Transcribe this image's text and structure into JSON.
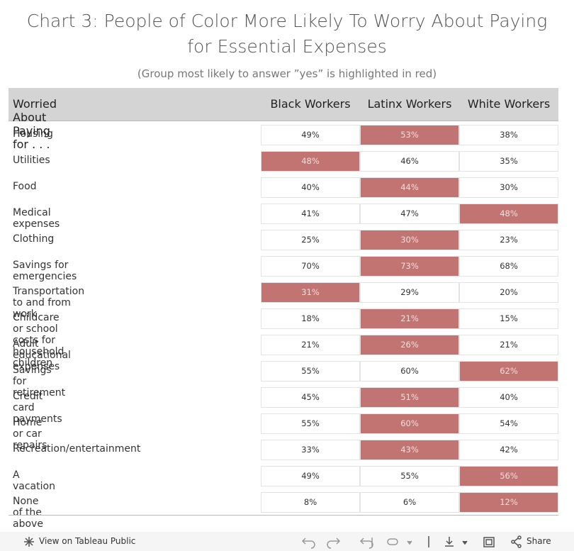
{
  "header": {
    "title": "Chart 3: People of Color More Likely To Worry About Paying for Essential Expenses",
    "subtitle": "(Group most likely to answer ”yes” is highlighted in red)"
  },
  "table": {
    "highlight_color": "#c17471",
    "columns": [
      "Worried About Paying for . . .",
      "Black Workers",
      "Latinx Workers",
      "White Workers"
    ],
    "rows": [
      {
        "label": "Housing",
        "cells": [
          {
            "text": "49%",
            "highlighted": false
          },
          {
            "text": "53%",
            "highlighted": true
          },
          {
            "text": "38%",
            "highlighted": false
          }
        ]
      },
      {
        "label": "Utilities",
        "cells": [
          {
            "text": "48%",
            "highlighted": true
          },
          {
            "text": "46%",
            "highlighted": false
          },
          {
            "text": "35%",
            "highlighted": false
          }
        ]
      },
      {
        "label": "Food",
        "cells": [
          {
            "text": "40%",
            "highlighted": false
          },
          {
            "text": "44%",
            "highlighted": true
          },
          {
            "text": "30%",
            "highlighted": false
          }
        ]
      },
      {
        "label": "Medical expenses",
        "cells": [
          {
            "text": "41%",
            "highlighted": false
          },
          {
            "text": "47%",
            "highlighted": false
          },
          {
            "text": "48%",
            "highlighted": true
          }
        ]
      },
      {
        "label": "Clothing",
        "cells": [
          {
            "text": "25%",
            "highlighted": false
          },
          {
            "text": "30%",
            "highlighted": true
          },
          {
            "text": "23%",
            "highlighted": false
          }
        ]
      },
      {
        "label": "Savings for emergencies",
        "cells": [
          {
            "text": "70%",
            "highlighted": false
          },
          {
            "text": "73%",
            "highlighted": true
          },
          {
            "text": "68%",
            "highlighted": false
          }
        ]
      },
      {
        "label": "Transportation to and from work",
        "cells": [
          {
            "text": "31%",
            "highlighted": true
          },
          {
            "text": "29%",
            "highlighted": false
          },
          {
            "text": "20%",
            "highlighted": false
          }
        ]
      },
      {
        "label": "Childcare or school costs for household children",
        "cells": [
          {
            "text": "18%",
            "highlighted": false
          },
          {
            "text": "21%",
            "highlighted": true
          },
          {
            "text": "15%",
            "highlighted": false
          }
        ]
      },
      {
        "label": "Adult educational expenses",
        "cells": [
          {
            "text": "21%",
            "highlighted": false
          },
          {
            "text": "26%",
            "highlighted": true
          },
          {
            "text": "21%",
            "highlighted": false
          }
        ]
      },
      {
        "label": "Savings for retirement",
        "cells": [
          {
            "text": "55%",
            "highlighted": false
          },
          {
            "text": "60%",
            "highlighted": false
          },
          {
            "text": "62%",
            "highlighted": true
          }
        ]
      },
      {
        "label": "Credit card payments",
        "cells": [
          {
            "text": "45%",
            "highlighted": false
          },
          {
            "text": "51%",
            "highlighted": true
          },
          {
            "text": "40%",
            "highlighted": false
          }
        ]
      },
      {
        "label": "Home or car repairs",
        "cells": [
          {
            "text": "55%",
            "highlighted": false
          },
          {
            "text": "60%",
            "highlighted": true
          },
          {
            "text": "54%",
            "highlighted": false
          }
        ]
      },
      {
        "label": "Recreation/entertainment",
        "cells": [
          {
            "text": "33%",
            "highlighted": false
          },
          {
            "text": "43%",
            "highlighted": true
          },
          {
            "text": "42%",
            "highlighted": false
          }
        ]
      },
      {
        "label": "A vacation",
        "cells": [
          {
            "text": "49%",
            "highlighted": false
          },
          {
            "text": "55%",
            "highlighted": false
          },
          {
            "text": "56%",
            "highlighted": true
          }
        ]
      },
      {
        "label": "None of the above",
        "cells": [
          {
            "text": "8%",
            "highlighted": false
          },
          {
            "text": "6%",
            "highlighted": false
          },
          {
            "text": "12%",
            "highlighted": true
          }
        ]
      }
    ]
  },
  "toolbar": {
    "view_link": "View on Tableau Public",
    "share": "Share"
  }
}
